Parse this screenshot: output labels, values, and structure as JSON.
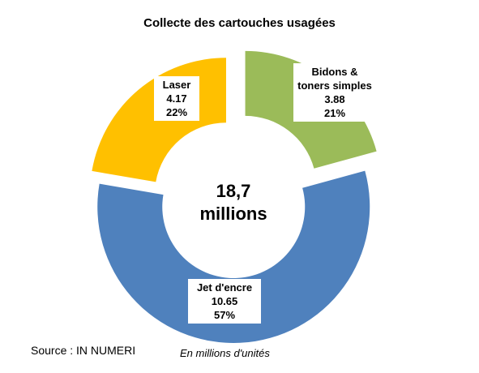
{
  "chart_data": {
    "type": "donut",
    "title": "Collecte des cartouches usagées",
    "categories": [
      "Bidons & toners simples",
      "Jet d'encre",
      "Laser"
    ],
    "values": [
      3.88,
      10.65,
      4.17
    ],
    "percent_labels": [
      "21%",
      "57%",
      "22%"
    ],
    "colors": [
      "#9bbb59",
      "#4f81bd",
      "#ffc000"
    ],
    "center_label": [
      "18,7",
      "millions"
    ],
    "source": "Source : IN NUMERI",
    "note": "En millions d'unités"
  }
}
